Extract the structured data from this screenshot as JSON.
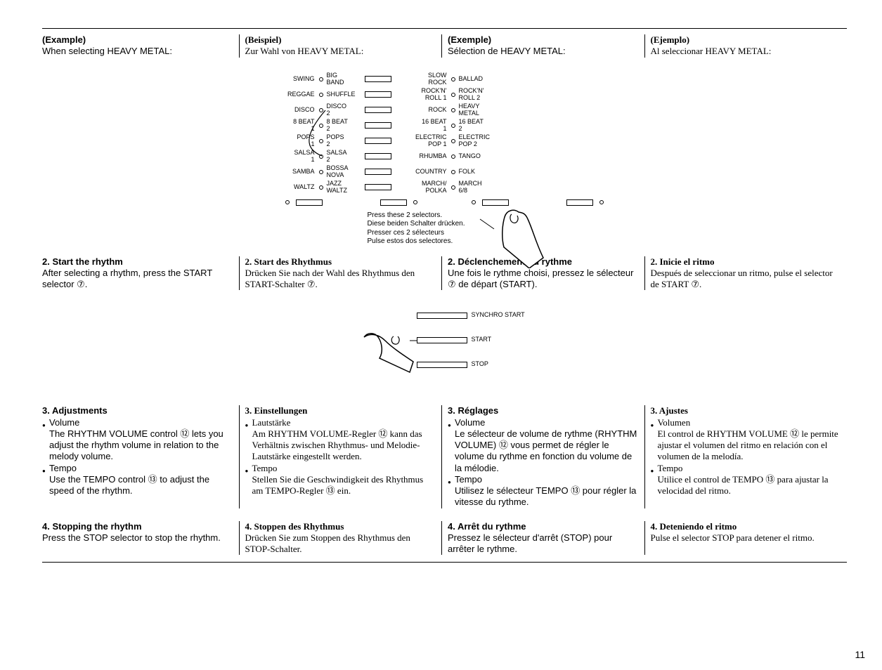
{
  "page_number": "11",
  "example_row": {
    "en": {
      "head": "(Example)",
      "sub": "When selecting HEAVY METAL:"
    },
    "de": {
      "head": "(Beispiel)",
      "sub": "Zur Wahl von HEAVY METAL:"
    },
    "fr": {
      "head": "(Exemple)",
      "sub": "Sélection de HEAVY METAL:"
    },
    "es": {
      "head": "(Ejemplo)",
      "sub": "Al seleccionar HEAVY METAL:"
    }
  },
  "diagram1": {
    "rows": [
      {
        "l1": "SWING",
        "l2": "BIG\nBAND",
        "r1": "SLOW\nROCK",
        "r2": "BALLAD"
      },
      {
        "l1": "REGGAE",
        "l2": "SHUFFLE",
        "r1": "ROCK'N'\nROLL 1",
        "r2": "ROCK'N'\nROLL 2"
      },
      {
        "l1": "DISCO",
        "l2": "DISCO\n2",
        "r1": "ROCK",
        "r2": "HEAVY\nMETAL"
      },
      {
        "l1": "8 BEAT\n1",
        "l2": "8 BEAT\n2",
        "r1": "16 BEAT\n1",
        "r2": "16 BEAT\n2"
      },
      {
        "l1": "POPS\n1",
        "l2": "POPS\n2",
        "r1": "ELECTRIC\nPOP 1",
        "r2": "ELECTRIC\nPOP 2"
      },
      {
        "l1": "SALSA\n1",
        "l2": "SALSA\n2",
        "r1": "RHUMBA",
        "r2": "TANGO"
      },
      {
        "l1": "SAMBA",
        "l2": "BOSSA\nNOVA",
        "r1": "COUNTRY",
        "r2": "FOLK"
      },
      {
        "l1": "WALTZ",
        "l2": "JAZZ\nWALTZ",
        "r1": "MARCH/\nPOLKA",
        "r2": "MARCH\n6/8"
      }
    ],
    "caption": [
      "Press these 2 selectors.",
      "Diese beiden Schalter drücken.",
      "Presser ces 2 sélecteurs",
      "Pulse estos dos selectores."
    ]
  },
  "step2": {
    "en": {
      "h": "2. Start the rhythm",
      "p": "After selecting a rhythm, press the START selector ⑦."
    },
    "de": {
      "h": "2. Start des Rhythmus",
      "p": "Drücken Sie nach der Wahl des Rhythmus den START-Schalter ⑦."
    },
    "fr": {
      "h": "2. Déclenchement du rythme",
      "p": "Une fois le rythme choisi, pressez le sélecteur ⑦ de départ (START)."
    },
    "es": {
      "h": "2. Inicie el ritmo",
      "p": "Después de seleccionar un ritmo, pulse el selector de START ⑦."
    }
  },
  "diagram2": {
    "labels": {
      "sync": "SYNCHRO START",
      "start": "START",
      "stop": "STOP"
    }
  },
  "step3": {
    "en": {
      "h": "3. Adjustments",
      "b1h": "Volume",
      "b1": "The RHYTHM VOLUME control ⑫ lets you adjust the rhythm volume in relation to the melody volume.",
      "b2h": "Tempo",
      "b2": "Use the TEMPO control ⑬ to adjust the speed of the rhythm."
    },
    "de": {
      "h": "3. Einstellungen",
      "b1h": "Lautstärke",
      "b1": "Am RHYTHM VOLUME-Regler ⑫ kann das Verhältnis zwischen Rhythmus- und Melodie-Lautstärke eingestellt werden.",
      "b2h": "Tempo",
      "b2": "Stellen Sie die Geschwindigkeit des Rhythmus am TEMPO-Regler ⑬ ein."
    },
    "fr": {
      "h": "3. Réglages",
      "b1h": "Volume",
      "b1": "Le sélecteur de volume de rythme (RHYTHM VOLUME) ⑫ vous permet de régler le volume du rythme en fonction du volume de la mélodie.",
      "b2h": "Tempo",
      "b2": "Utilisez le sélecteur TEMPO ⑬ pour régler la vitesse du rythme."
    },
    "es": {
      "h": "3. Ajustes",
      "b1h": "Volumen",
      "b1": "El control de RHYTHM VOLUME ⑫ le permite ajustar el volumen del ritmo en relación con el volumen de la melodía.",
      "b2h": "Tempo",
      "b2": "Utilice el control de TEMPO ⑬ para ajustar la velocidad del ritmo."
    }
  },
  "step4": {
    "en": {
      "h": "4. Stopping the rhythm",
      "p": "Press the STOP selector to stop the rhythm."
    },
    "de": {
      "h": "4. Stoppen des Rhythmus",
      "p": "Drücken Sie zum Stoppen des Rhythmus den STOP-Schalter."
    },
    "fr": {
      "h": "4. Arrêt du rythme",
      "p": "Pressez le sélecteur d'arrêt (STOP) pour arrêter le rythme."
    },
    "es": {
      "h": "4. Deteniendo el ritmo",
      "p": "Pulse el selector STOP para detener el ritmo."
    }
  }
}
